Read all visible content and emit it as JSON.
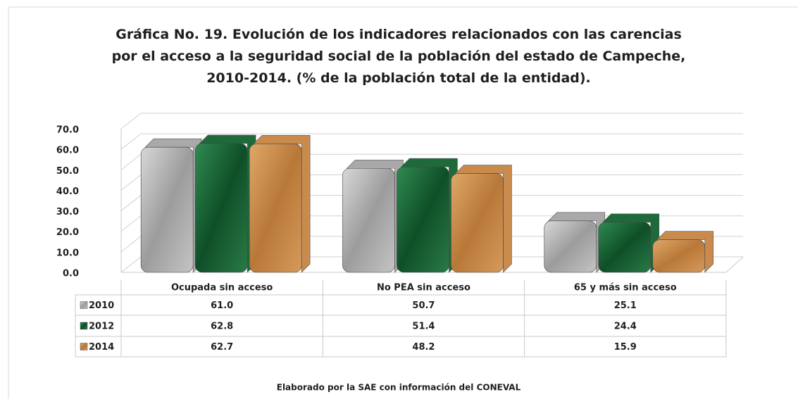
{
  "chart_data": {
    "type": "bar",
    "title": "Gráfica No. 19. Evolución de los indicadores relacionados con las carencias por el acceso a la seguridad social de la población del estado de Campeche, 2010-2014. (% de la población total de la entidad).",
    "categories": [
      "Ocupada sin acceso",
      "No PEA sin acceso",
      "65 y más sin acceso"
    ],
    "series": [
      {
        "name": "2010",
        "color": "#a9a9a9",
        "values": [
          61.0,
          50.7,
          25.1
        ],
        "value_labels": [
          "61.0",
          "50.7",
          "25.1"
        ]
      },
      {
        "name": "2012",
        "color": "#1e6a3b",
        "values": [
          62.8,
          51.4,
          24.4
        ],
        "value_labels": [
          "62.8",
          "51.4",
          "24.4"
        ]
      },
      {
        "name": "2014",
        "color": "#c98a4e",
        "values": [
          62.7,
          48.2,
          15.9
        ],
        "value_labels": [
          "62.7",
          "48.2",
          "15.9"
        ]
      }
    ],
    "ylim": [
      0,
      70
    ],
    "yticks": [
      {
        "value": 0,
        "label": "0.0"
      },
      {
        "value": 10,
        "label": "10.0"
      },
      {
        "value": 20,
        "label": "20.0"
      },
      {
        "value": 30,
        "label": "30.0"
      },
      {
        "value": 40,
        "label": "40.0"
      },
      {
        "value": 50,
        "label": "50.0"
      },
      {
        "value": 60,
        "label": "60.0"
      },
      {
        "value": 70,
        "label": "70.0"
      }
    ],
    "grid": true,
    "note": "Elaborado por la SAE con información del CONEVAL"
  }
}
